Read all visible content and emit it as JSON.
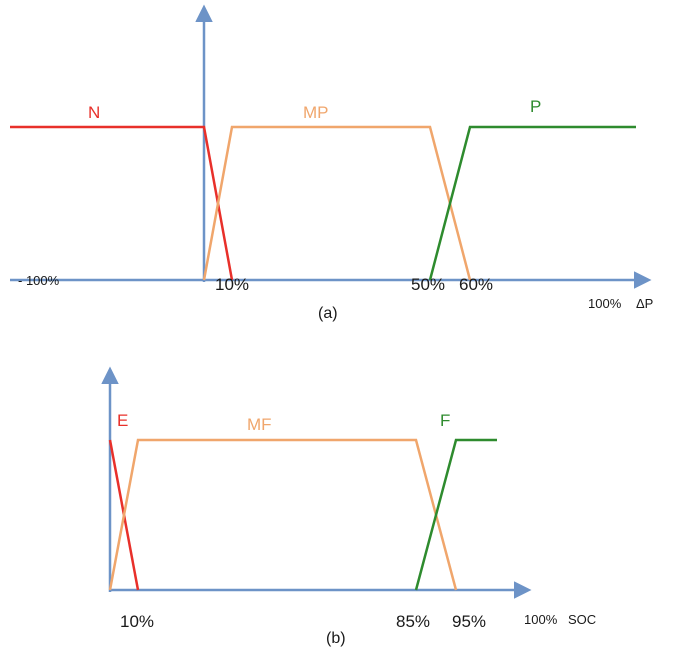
{
  "colors": {
    "axis": "#6d93c7",
    "n": "#e8302a",
    "mp": "#f0a66c",
    "p": "#2e8b2e",
    "text": "#1a1a1a"
  },
  "panel_a": {
    "caption": "(a)",
    "tick_labels": [
      "- 100%",
      "10%",
      "50%",
      "60%",
      "100%"
    ],
    "axis_label": "ΔP",
    "sets": [
      {
        "key": "n",
        "label": "N"
      },
      {
        "key": "mp",
        "label": "MP"
      },
      {
        "key": "p",
        "label": "P"
      }
    ]
  },
  "panel_b": {
    "caption": "(b)",
    "tick_labels": [
      "10%",
      "85%",
      "95%",
      "100%"
    ],
    "axis_label": "SOC",
    "sets": [
      {
        "key": "n",
        "label": "E"
      },
      {
        "key": "mp",
        "label": "MF"
      },
      {
        "key": "p",
        "label": "F"
      }
    ]
  }
}
